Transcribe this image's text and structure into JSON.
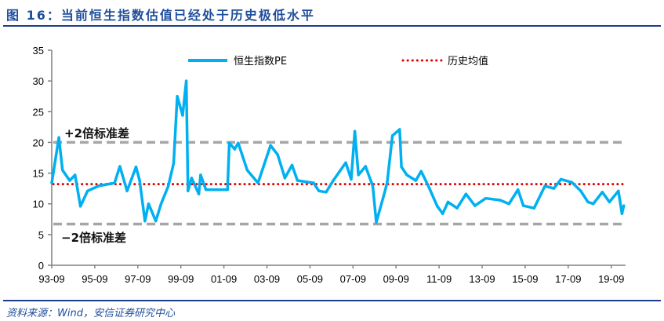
{
  "title": "图 16：当前恒生指数估值已经处于历史极低水平",
  "source": "资料来源：Wind，安信证券研究中心",
  "colors": {
    "series": "#00b0f0",
    "mean": "#e00000",
    "band": "#a6a6a6",
    "title": "#1f4e9b"
  },
  "chart_data": {
    "type": "line",
    "title": "",
    "xlabel": "",
    "ylabel": "",
    "ylim": [
      0,
      35
    ],
    "yticks": [
      "0",
      "5",
      "10",
      "15",
      "20",
      "25",
      "30",
      "35"
    ],
    "xlim": [
      "1993-09",
      "2020-09"
    ],
    "xticks": [
      "93-09",
      "95-09",
      "97-09",
      "99-09",
      "01-09",
      "03-09",
      "05-09",
      "07-09",
      "09-09",
      "11-09",
      "13-09",
      "15-09",
      "17-09",
      "19-09"
    ],
    "grid": false,
    "legend_position": "top",
    "series": [
      {
        "name": "恒生指数PE",
        "x": [
          "1993-09",
          "1994-01",
          "1994-03",
          "1994-07",
          "1994-10",
          "1995-01",
          "1995-05",
          "1995-11",
          "1996-08",
          "1996-11",
          "1997-03",
          "1997-08",
          "1997-10",
          "1998-01",
          "1998-03",
          "1998-07",
          "1998-10",
          "1999-02",
          "1999-05",
          "1999-07",
          "1999-10",
          "1999-12",
          "2000-01",
          "2000-03",
          "2000-07",
          "2000-08",
          "2000-11",
          "2001-11",
          "2001-12",
          "2002-03",
          "2002-05",
          "2002-10",
          "2003-04",
          "2003-11",
          "2004-03",
          "2004-07",
          "2004-11",
          "2005-02",
          "2005-11",
          "2006-02",
          "2006-06",
          "2006-10",
          "2007-05",
          "2007-08",
          "2007-10",
          "2007-12",
          "2008-04",
          "2008-08",
          "2008-10",
          "2009-02",
          "2009-04",
          "2009-07",
          "2009-11",
          "2009-12",
          "2010-03",
          "2010-08",
          "2010-11",
          "2011-03",
          "2011-08",
          "2011-11",
          "2012-02",
          "2012-07",
          "2012-12",
          "2013-05",
          "2013-11",
          "2014-07",
          "2014-12",
          "2015-05",
          "2015-08",
          "2016-02",
          "2016-08",
          "2017-01",
          "2017-05",
          "2017-11",
          "2018-04",
          "2018-08",
          "2018-11",
          "2019-04",
          "2019-08",
          "2020-01",
          "2020-03",
          "2020-04"
        ],
        "y": [
          13.4,
          20.8,
          15.5,
          13.8,
          14.7,
          9.6,
          12.1,
          12.9,
          13.4,
          16.1,
          12.1,
          16.0,
          13.8,
          7.2,
          10.0,
          7.2,
          10.0,
          12.9,
          16.6,
          27.5,
          24.4,
          30.0,
          12.1,
          14.2,
          11.6,
          14.7,
          12.3,
          12.3,
          19.9,
          18.9,
          19.9,
          15.5,
          13.4,
          19.5,
          18.0,
          14.2,
          16.3,
          13.8,
          13.4,
          12.1,
          11.9,
          13.8,
          16.7,
          14.0,
          21.8,
          14.7,
          16.1,
          12.9,
          7.0,
          11.2,
          13.4,
          21.1,
          22.1,
          16.0,
          14.7,
          13.8,
          15.3,
          12.9,
          9.6,
          8.4,
          10.3,
          9.3,
          11.6,
          9.7,
          10.9,
          10.6,
          10.0,
          12.3,
          9.7,
          9.3,
          12.9,
          12.5,
          14.0,
          13.5,
          12.1,
          10.3,
          10.0,
          11.9,
          10.3,
          12.1,
          8.4,
          9.7
        ]
      }
    ],
    "reference_lines": [
      {
        "name": "历史均值",
        "value": 13.2,
        "style": "dotted"
      },
      {
        "label": "+2倍标准差",
        "value": 20.0,
        "style": "dashed"
      },
      {
        "label": "−2倍标准差",
        "value": 6.7,
        "style": "dashed"
      }
    ]
  }
}
